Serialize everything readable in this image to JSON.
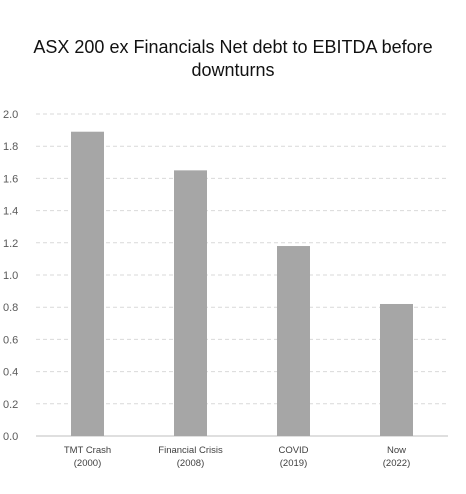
{
  "chart_data": {
    "type": "bar",
    "title_lines": [
      "ASX 200 ex Financials Net debt to EBITDA before",
      "downturns"
    ],
    "categories": [
      [
        "TMT Crash",
        "(2000)"
      ],
      [
        "Financial Crisis",
        "(2008)"
      ],
      [
        "COVID",
        "(2019)"
      ],
      [
        "Now",
        "(2022)"
      ]
    ],
    "values": [
      1.89,
      1.65,
      1.18,
      0.82
    ],
    "ylim": [
      0,
      2.0
    ],
    "yticks": [
      "0.0",
      "0.2",
      "0.4",
      "0.6",
      "0.8",
      "1.0",
      "1.2",
      "1.4",
      "1.6",
      "1.8",
      "2.0"
    ],
    "grid": "horizontal-dashed",
    "bar_color": "#a6a6a6",
    "grid_color": "#d9d9d9"
  }
}
